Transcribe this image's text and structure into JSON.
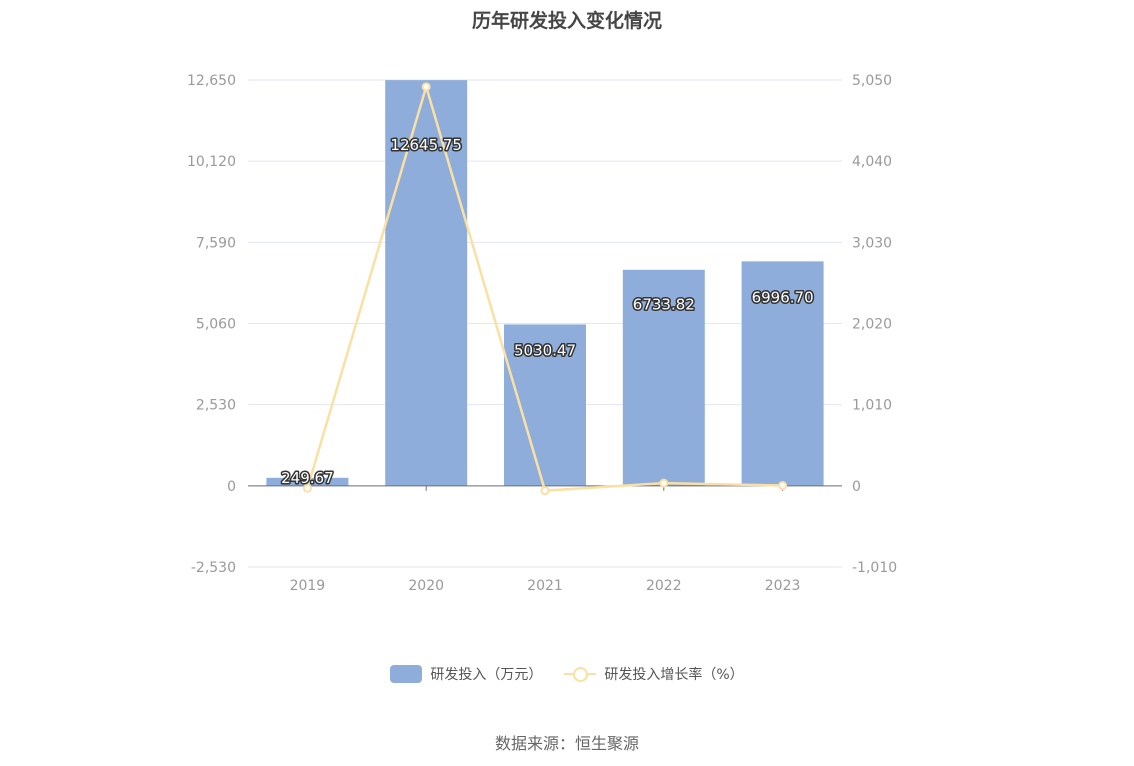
{
  "chart_data": {
    "type": "bar",
    "title": "历年研发投入变化情况",
    "categories": [
      "2019",
      "2020",
      "2021",
      "2022",
      "2023"
    ],
    "series": [
      {
        "name": "研发投入（万元）",
        "type": "bar",
        "axis": "left",
        "color": "#8eaddb",
        "values": [
          249.67,
          12645.75,
          5030.47,
          6733.82,
          6996.7
        ],
        "labels": [
          "249.67",
          "12645.75",
          "5030.47",
          "6733.82",
          "6996.70"
        ]
      },
      {
        "name": "研发投入增长率（%）",
        "type": "line",
        "axis": "right",
        "color": "#fbe0a4",
        "values": [
          -30,
          4965,
          -60,
          34,
          4
        ]
      }
    ],
    "y_left": {
      "min": -2530,
      "max": 12650,
      "ticks": [
        "12,650",
        "10,120",
        "7,590",
        "5,060",
        "2,530",
        "0",
        "-2,530"
      ]
    },
    "y_right": {
      "min": -1010,
      "max": 5050,
      "ticks": [
        "5,050",
        "4,040",
        "3,030",
        "2,020",
        "1,010",
        "0",
        "-1,010"
      ]
    },
    "grid": true,
    "legend_position": "bottom"
  },
  "source": "数据来源：恒生聚源"
}
